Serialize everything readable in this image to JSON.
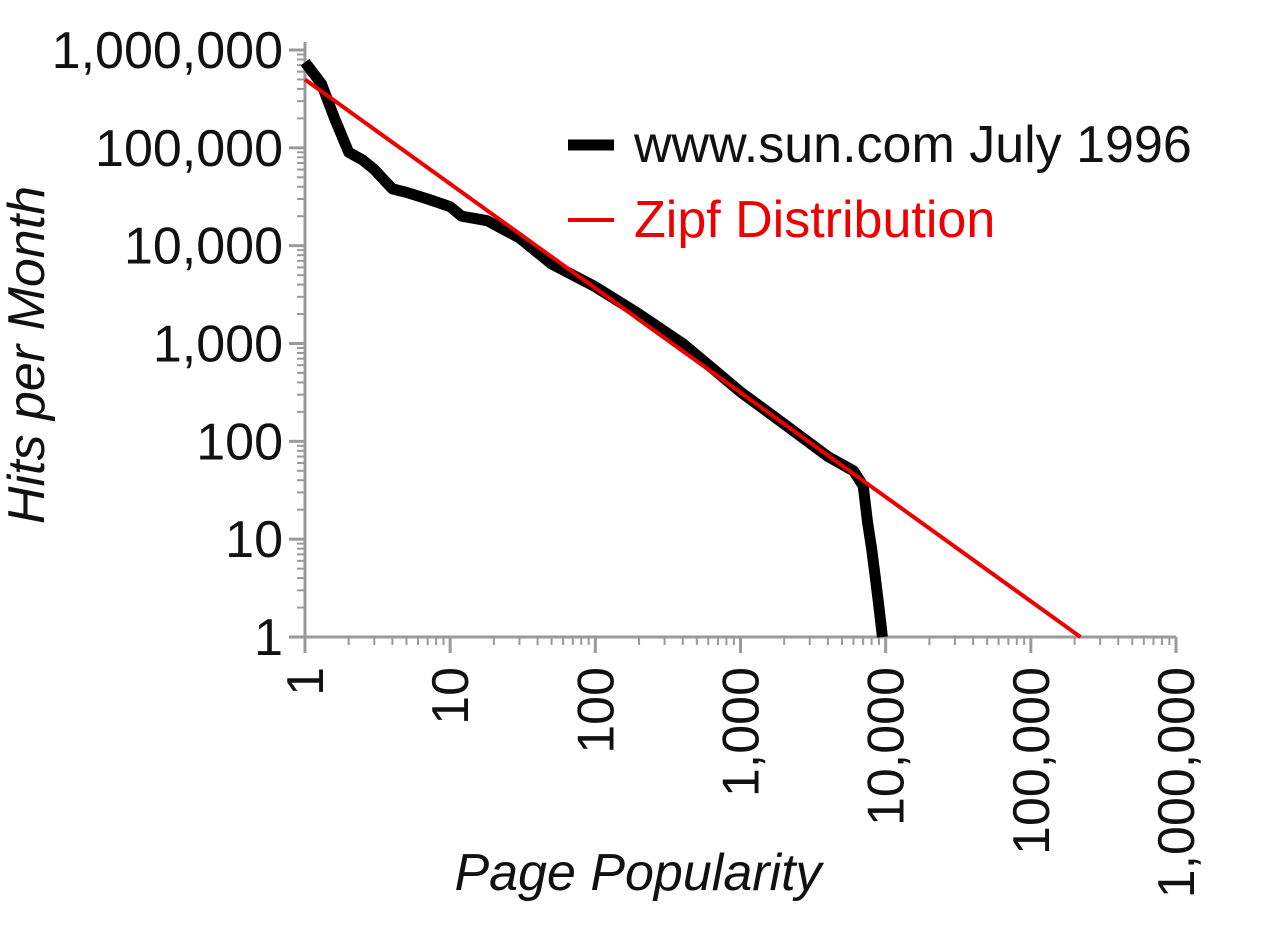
{
  "chart_data": {
    "type": "line",
    "xlabel": "Page Popularity",
    "ylabel": "Hits per Month",
    "x_scale": "log",
    "y_scale": "log",
    "xlim": [
      1,
      1000000
    ],
    "ylim": [
      1,
      1000000
    ],
    "x_ticks": [
      {
        "value": 1,
        "label": "1"
      },
      {
        "value": 10,
        "label": "10"
      },
      {
        "value": 100,
        "label": "100"
      },
      {
        "value": 1000,
        "label": "1,000"
      },
      {
        "value": 10000,
        "label": "10,000"
      },
      {
        "value": 100000,
        "label": "100,000"
      },
      {
        "value": 1000000,
        "label": "1,000,000"
      }
    ],
    "y_ticks": [
      {
        "value": 1,
        "label": "1"
      },
      {
        "value": 10,
        "label": "10"
      },
      {
        "value": 100,
        "label": "100"
      },
      {
        "value": 1000,
        "label": "1,000"
      },
      {
        "value": 10000,
        "label": "10,000"
      },
      {
        "value": 100000,
        "label": "100,000"
      },
      {
        "value": 1000000,
        "label": "1,000,000"
      }
    ],
    "grid": false,
    "legend_position": "top-right",
    "series": [
      {
        "name": "www.sun.com July 1996",
        "color": "#000000",
        "points": [
          [
            1,
            750000
          ],
          [
            1.3,
            450000
          ],
          [
            1.6,
            200000
          ],
          [
            2,
            90000
          ],
          [
            2.5,
            75000
          ],
          [
            3,
            60000
          ],
          [
            4,
            38000
          ],
          [
            5,
            35000
          ],
          [
            7,
            30000
          ],
          [
            10,
            25000
          ],
          [
            12,
            20000
          ],
          [
            18,
            18000
          ],
          [
            30,
            12000
          ],
          [
            50,
            6500
          ],
          [
            100,
            3800
          ],
          [
            200,
            2000
          ],
          [
            400,
            1000
          ],
          [
            700,
            500
          ],
          [
            1000,
            320
          ],
          [
            2000,
            150
          ],
          [
            4000,
            70
          ],
          [
            6000,
            50
          ],
          [
            7000,
            35
          ],
          [
            7500,
            15
          ],
          [
            8000,
            8
          ],
          [
            8500,
            4
          ],
          [
            9000,
            2
          ],
          [
            9500,
            1
          ]
        ]
      },
      {
        "name": "Zipf Distribution",
        "color": "#ee0000",
        "points": [
          [
            1,
            500000
          ],
          [
            220000,
            1
          ]
        ]
      }
    ]
  }
}
